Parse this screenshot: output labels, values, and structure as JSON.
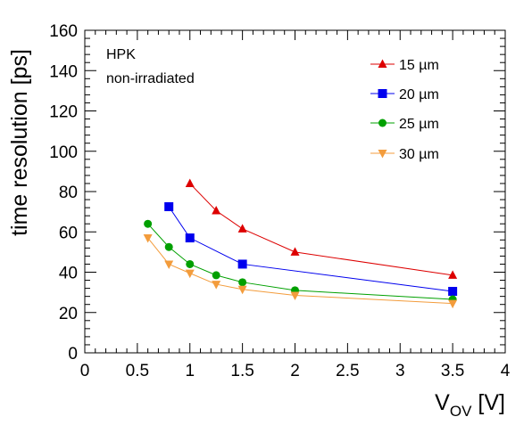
{
  "chart_data": {
    "type": "line",
    "title": "",
    "xlabel_main": "V",
    "xlabel_sub": "OV",
    "xlabel_unit": "[V]",
    "ylabel": "time resolution [ps]",
    "xlim": [
      0,
      4
    ],
    "ylim": [
      0,
      160
    ],
    "x_ticks": [
      0,
      0.5,
      1,
      1.5,
      2,
      2.5,
      3,
      3.5,
      4
    ],
    "x_tick_labels": [
      "0",
      "0.5",
      "1",
      "1.5",
      "2",
      "2.5",
      "3",
      "3.5",
      "4"
    ],
    "y_ticks": [
      0,
      20,
      40,
      60,
      80,
      100,
      120,
      140,
      160
    ],
    "y_tick_labels": [
      "0",
      "20",
      "40",
      "60",
      "80",
      "100",
      "120",
      "140",
      "160"
    ],
    "grid": false,
    "legend_position": "top-right",
    "annotations": [
      "HPK",
      "non-irradiated"
    ],
    "series": [
      {
        "name": "15 µm",
        "color": "#dd0000",
        "marker": "triangle-up",
        "x": [
          1.0,
          1.25,
          1.5,
          2.0,
          3.5
        ],
        "y": [
          84,
          70.5,
          61.5,
          50,
          38.5
        ]
      },
      {
        "name": "20 µm",
        "color": "#0000ee",
        "marker": "square",
        "x": [
          0.8,
          1.0,
          1.5,
          3.5
        ],
        "y": [
          72.5,
          57,
          44,
          30.5
        ]
      },
      {
        "name": "25 µm",
        "color": "#00a000",
        "marker": "circle",
        "x": [
          0.6,
          0.8,
          1.0,
          1.25,
          1.5,
          2.0,
          3.5
        ],
        "y": [
          64,
          52.5,
          44,
          38.5,
          35,
          31,
          26.5
        ]
      },
      {
        "name": "30 µm",
        "color": "#f39c3c",
        "marker": "triangle-down",
        "x": [
          0.6,
          0.8,
          1.0,
          1.25,
          1.5,
          2.0,
          3.5
        ],
        "y": [
          57,
          44,
          39.5,
          34,
          31.5,
          28.5,
          24.5
        ]
      }
    ]
  }
}
